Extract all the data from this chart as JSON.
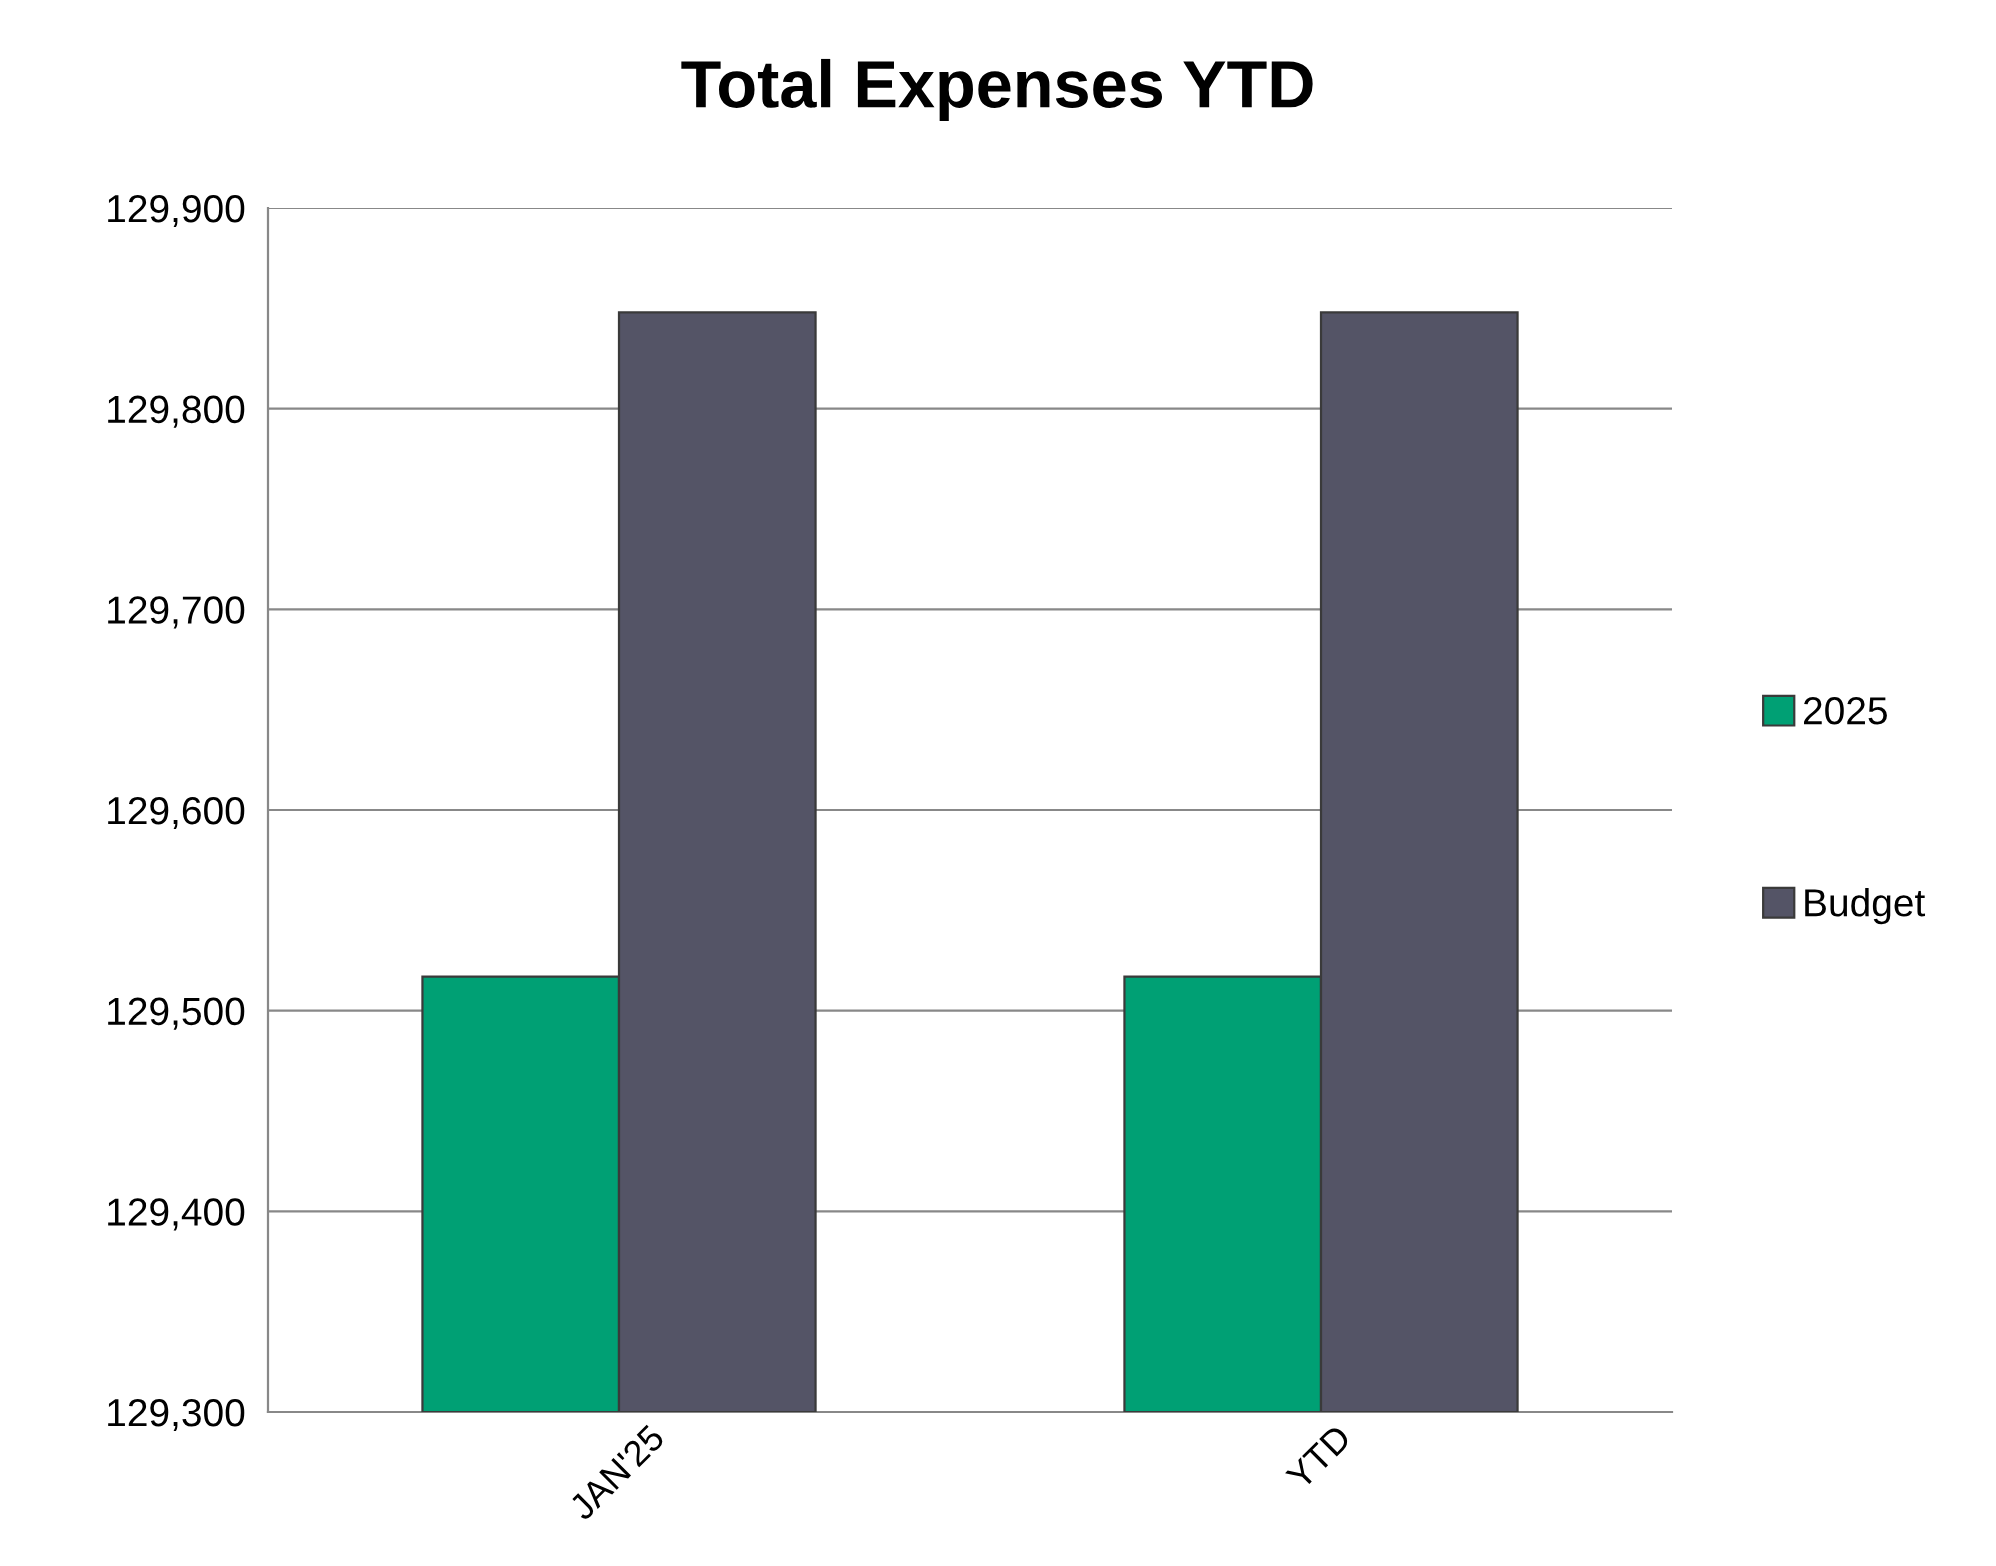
{
  "chart_data": {
    "type": "bar",
    "title": "Total Expenses YTD",
    "categories": [
      "JAN'25",
      "YTD"
    ],
    "series": [
      {
        "name": "2025",
        "color": "#00a074",
        "values": [
          129517,
          129517
        ]
      },
      {
        "name": "Budget",
        "color": "#545466",
        "values": [
          129848,
          129848
        ]
      }
    ],
    "ylim": [
      129300,
      129900
    ],
    "yticks": [
      {
        "value": 129300,
        "label": "129,300"
      },
      {
        "value": 129400,
        "label": "129,400"
      },
      {
        "value": 129500,
        "label": "129,500"
      },
      {
        "value": 129600,
        "label": "129,600"
      },
      {
        "value": 129700,
        "label": "129,700"
      },
      {
        "value": 129800,
        "label": "129,800"
      },
      {
        "value": 129900,
        "label": "129,900"
      }
    ],
    "grid": "y",
    "legend": "right"
  }
}
